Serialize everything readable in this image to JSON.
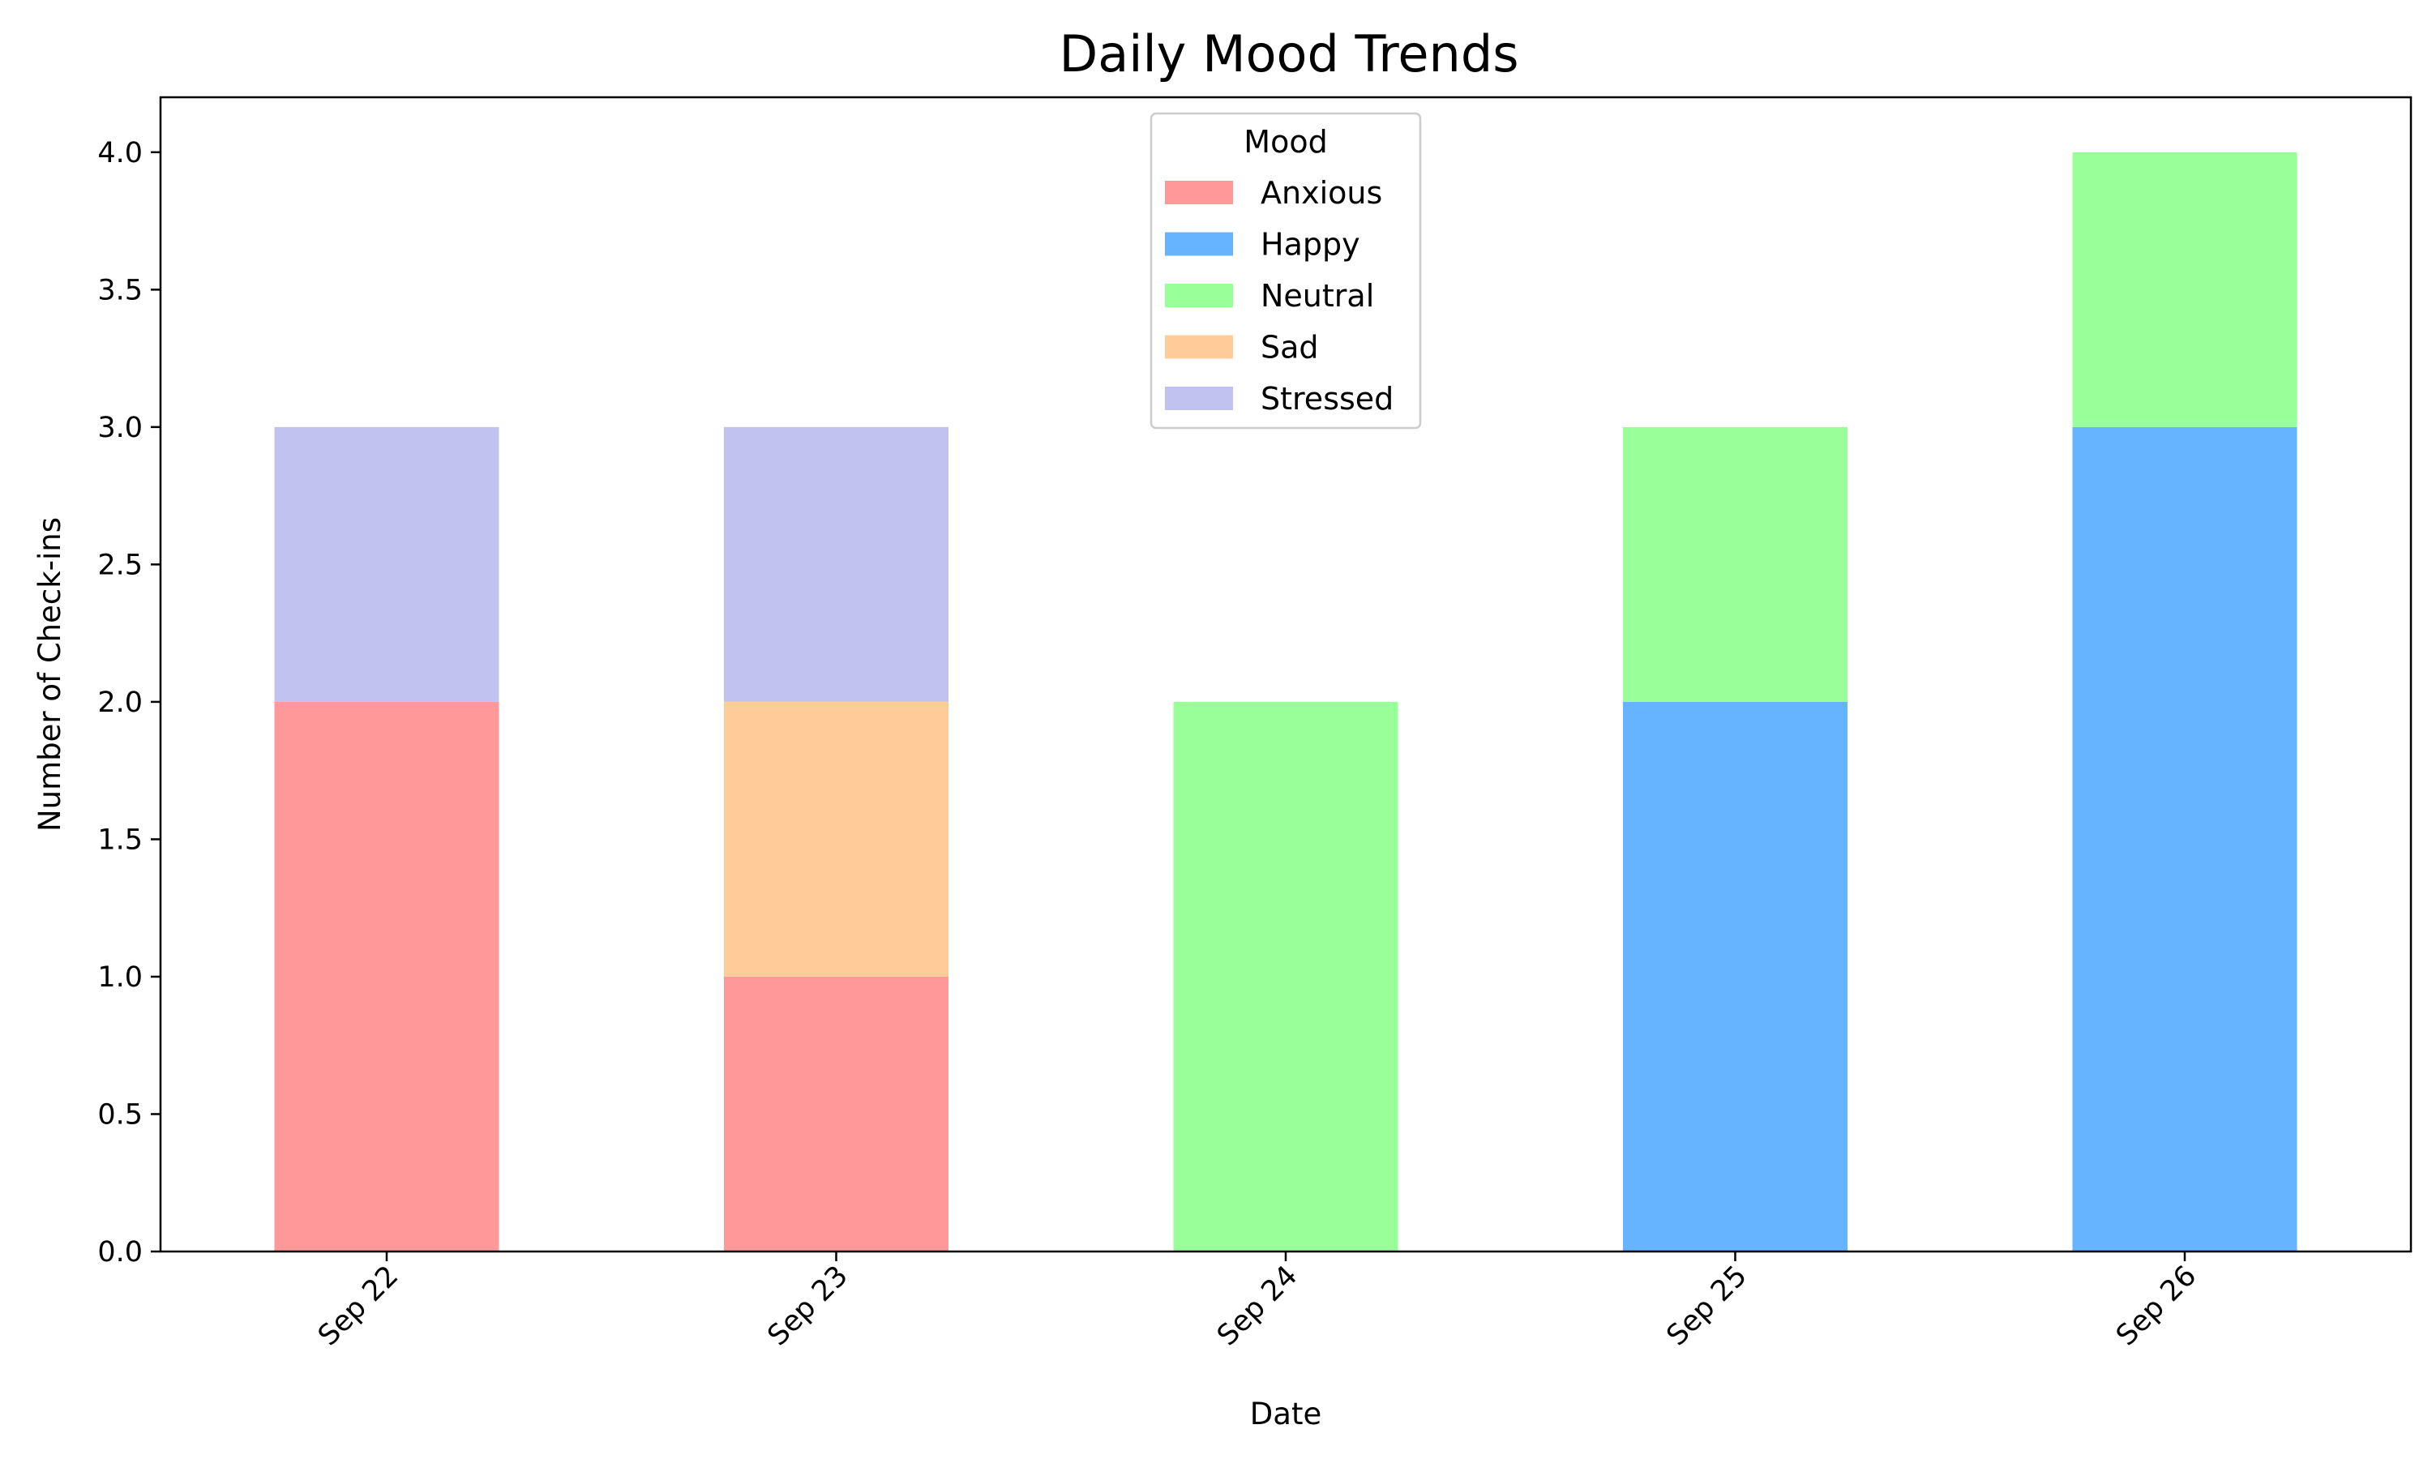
{
  "chart_data": {
    "type": "bar",
    "stacked": true,
    "title": "Daily Mood Trends",
    "xlabel": "Date",
    "ylabel": "Number of Check-ins",
    "categories": [
      "Sep 22",
      "Sep 23",
      "Sep 24",
      "Sep 25",
      "Sep 26"
    ],
    "ylim": [
      0,
      4.2
    ],
    "yticks": [
      "0.0",
      "0.5",
      "1.0",
      "1.5",
      "2.0",
      "2.5",
      "3.0",
      "3.5",
      "4.0"
    ],
    "grid": false,
    "legend_title": "Mood",
    "legend_position": "upper center",
    "series": [
      {
        "name": "Anxious",
        "color": "#ff9999",
        "values": [
          2,
          1,
          0,
          0,
          0
        ]
      },
      {
        "name": "Happy",
        "color": "#66b3ff",
        "values": [
          0,
          0,
          0,
          2,
          3
        ]
      },
      {
        "name": "Neutral",
        "color": "#99ff99",
        "values": [
          0,
          0,
          2,
          1,
          1
        ]
      },
      {
        "name": "Sad",
        "color": "#ffcc99",
        "values": [
          0,
          1,
          0,
          0,
          0
        ]
      },
      {
        "name": "Stressed",
        "color": "#c2c2f0",
        "values": [
          1,
          1,
          0,
          0,
          0
        ]
      }
    ]
  }
}
